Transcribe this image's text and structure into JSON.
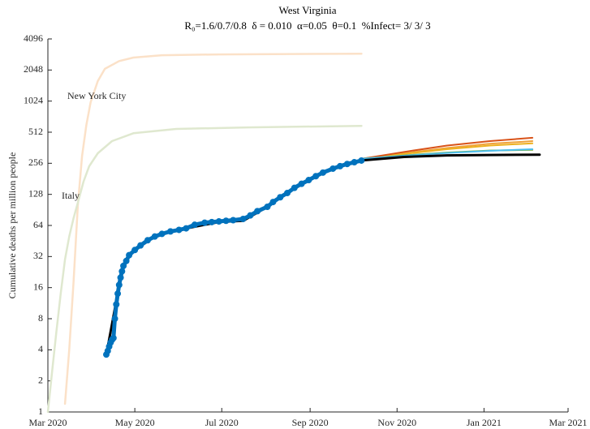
{
  "chart_data": {
    "type": "line",
    "title": "West Virginia",
    "subtitle": "R₀=1.6/0.7/0.8  δ = 0.010  α=0.05  θ=0.1  %Infect= 3/ 3/ 3",
    "y_label": "Cumulative deaths per million people",
    "y_scale": "log2",
    "xlim": [
      0,
      365
    ],
    "xticks": [
      {
        "value": 0,
        "label": "Mar 2020"
      },
      {
        "value": 61,
        "label": "May 2020"
      },
      {
        "value": 122,
        "label": "Jul 2020"
      },
      {
        "value": 184,
        "label": "Sep 2020"
      },
      {
        "value": 245,
        "label": "Nov 2020"
      },
      {
        "value": 306,
        "label": "Jan 2021"
      },
      {
        "value": 365,
        "label": "Mar 2021"
      }
    ],
    "ylim": [
      1,
      4096
    ],
    "yticks": [
      1,
      2,
      4,
      8,
      16,
      32,
      64,
      128,
      256,
      512,
      1024,
      2048,
      4096
    ],
    "series": [
      {
        "name": "New York City",
        "color": "#fbe1c8",
        "width": 2.5,
        "x": [
          12,
          15,
          18,
          21,
          24,
          27,
          30,
          35,
          40,
          50,
          60,
          80,
          120,
          220
        ],
        "values": [
          1.2,
          4,
          18,
          100,
          300,
          600,
          1000,
          1600,
          2100,
          2500,
          2700,
          2850,
          2900,
          2950
        ]
      },
      {
        "name": "Italy",
        "color": "#dfe8cf",
        "width": 2.5,
        "x": [
          0,
          3,
          6,
          9,
          12,
          15,
          18,
          21,
          25,
          29,
          35,
          45,
          60,
          90,
          140,
          220
        ],
        "values": [
          1,
          2.5,
          6,
          14,
          30,
          50,
          75,
          106,
          170,
          240,
          320,
          420,
          500,
          550,
          570,
          590
        ]
      },
      {
        "color": "#f0a23a",
        "width": 2,
        "x": [
          220,
          250,
          280,
          310,
          340
        ],
        "values": [
          283,
          320,
          360,
          395,
          420
        ]
      },
      {
        "color": "#edb120",
        "width": 2,
        "x": [
          220,
          250,
          280,
          310,
          340
        ],
        "values": [
          283,
          315,
          350,
          380,
          400
        ]
      },
      {
        "color": "#d95319",
        "width": 2,
        "x": [
          220,
          250,
          280,
          310,
          340
        ],
        "values": [
          283,
          330,
          380,
          420,
          452
        ]
      },
      {
        "color": "#77ac30",
        "width": 2,
        "x": [
          220,
          250,
          280,
          310,
          340
        ],
        "values": [
          283,
          305,
          325,
          340,
          345
        ]
      },
      {
        "color": "#4dbeee",
        "width": 2,
        "x": [
          220,
          250,
          280,
          310,
          340
        ],
        "values": [
          283,
          303,
          322,
          338,
          350
        ]
      },
      {
        "color": "#000000",
        "width": 3,
        "x": [
          41,
          44,
          47,
          50,
          52,
          57,
          61,
          75,
          86,
          97,
          120,
          137,
          154,
          163,
          183,
          200,
          219,
          250,
          280,
          310,
          345
        ],
        "values": [
          3.6,
          6,
          10,
          17,
          24,
          33,
          37,
          50,
          56,
          60,
          69,
          71,
          97,
          120,
          176,
          227,
          272,
          295,
          305,
          308,
          310
        ]
      },
      {
        "color": "#0072bd",
        "width": 5,
        "marker": "o",
        "x": [
          41,
          42,
          43,
          44,
          45,
          46,
          47,
          48,
          49,
          50,
          51,
          52,
          53,
          55,
          57,
          61,
          65,
          70,
          75,
          80,
          86,
          92,
          97,
          103,
          110,
          115,
          120,
          125,
          130,
          137,
          142,
          147,
          154,
          158,
          163,
          168,
          173,
          178,
          183,
          188,
          193,
          200,
          205,
          210,
          215,
          220
        ],
        "values": [
          3.6,
          3.9,
          4.3,
          4.7,
          5,
          5.2,
          8,
          11,
          14,
          17,
          20,
          23,
          26,
          29,
          33,
          37,
          41,
          46,
          50,
          53,
          56,
          58,
          60,
          65,
          68,
          69,
          70,
          71,
          72,
          74,
          80,
          88,
          97,
          108,
          120,
          132,
          148,
          162,
          176,
          192,
          208,
          227,
          240,
          252,
          262,
          272
        ]
      }
    ]
  }
}
